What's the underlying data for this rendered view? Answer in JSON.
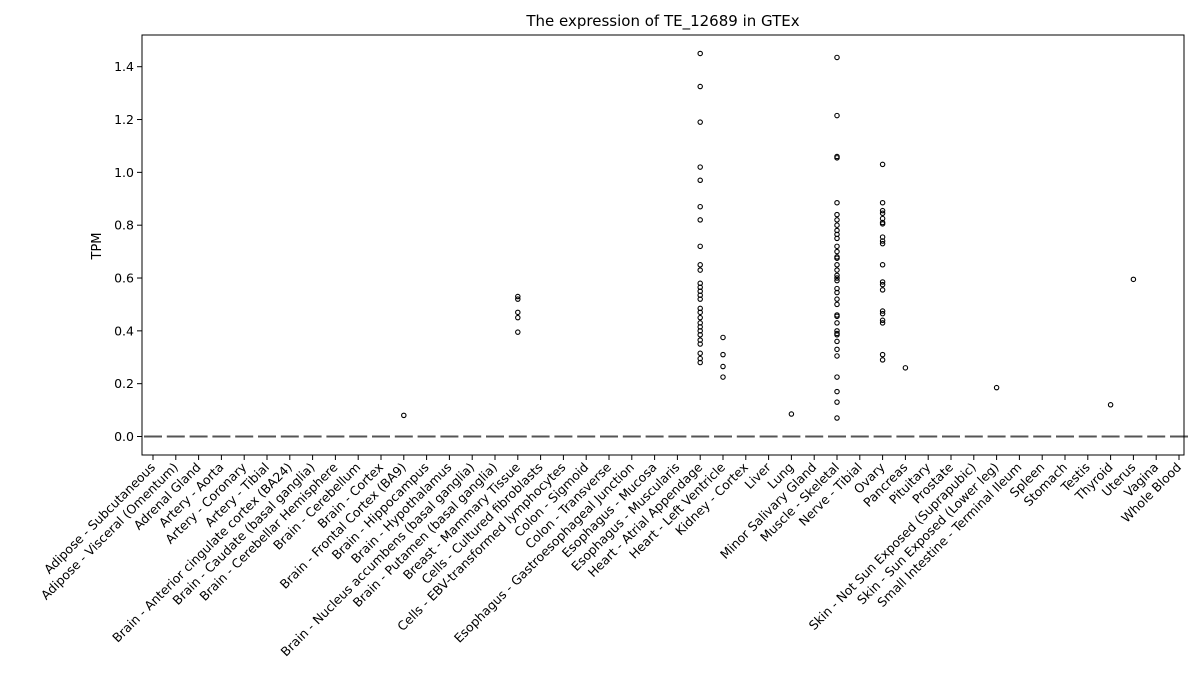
{
  "chart_data": {
    "type": "box",
    "title": "The expression of TE_12689 in GTEx",
    "xlabel": "",
    "ylabel": "TPM",
    "ylim": [
      -0.07,
      1.52
    ],
    "yticks": [
      "0.0",
      "0.2",
      "0.4",
      "0.6",
      "0.8",
      "1.0",
      "1.2",
      "1.4"
    ],
    "ytick_values": [
      0.0,
      0.2,
      0.4,
      0.6,
      0.8,
      1.0,
      1.2,
      1.4
    ],
    "grid": false,
    "median_color": "#555555",
    "categories": [
      "Adipose - Subcutaneous",
      "Adipose - Visceral (Omentum)",
      "Adrenal Gland",
      "Artery - Aorta",
      "Artery - Coronary",
      "Artery - Tibial",
      "Brain - Anterior cingulate cortex (BA24)",
      "Brain - Caudate (basal ganglia)",
      "Brain - Cerebellar Hemisphere",
      "Brain - Cerebellum",
      "Brain - Cortex",
      "Brain - Frontal Cortex (BA9)",
      "Brain - Hippocampus",
      "Brain - Hypothalamus",
      "Brain - Nucleus accumbens (basal ganglia)",
      "Brain - Putamen (basal ganglia)",
      "Breast - Mammary Tissue",
      "Cells - Cultured fibroblasts",
      "Cells - EBV-transformed lymphocytes",
      "Colon - Sigmoid",
      "Colon - Transverse",
      "Esophagus - Gastroesophageal Junction",
      "Esophagus - Mucosa",
      "Esophagus - Muscularis",
      "Heart - Atrial Appendage",
      "Heart - Left Ventricle",
      "Kidney - Cortex",
      "Liver",
      "Lung",
      "Minor Salivary Gland",
      "Muscle - Skeletal",
      "Nerve - Tibial",
      "Ovary",
      "Pancreas",
      "Pituitary",
      "Prostate",
      "Skin - Not Sun Exposed (Suprapubic)",
      "Skin - Sun Exposed (Lower leg)",
      "Small Intestine - Terminal Ileum",
      "Spleen",
      "Stomach",
      "Testis",
      "Thyroid",
      "Uterus",
      "Vagina",
      "Whole Blood"
    ],
    "medians": [
      0,
      0,
      0,
      0,
      0,
      0,
      0,
      0,
      0,
      0,
      0,
      0,
      0,
      0,
      0,
      0,
      0,
      0,
      0,
      0,
      0,
      0,
      0,
      0,
      0,
      0,
      0,
      0,
      0,
      0,
      0,
      0,
      0,
      0,
      0,
      0,
      0,
      0,
      0,
      0,
      0,
      0,
      0,
      0,
      0,
      0
    ],
    "outliers": [
      [],
      [],
      [],
      [],
      [],
      [],
      [],
      [],
      [],
      [],
      [],
      [
        0.08
      ],
      [],
      [],
      [],
      [],
      [
        0.53,
        0.52,
        0.47,
        0.45,
        0.395
      ],
      [],
      [],
      [],
      [],
      [],
      [],
      [],
      [
        1.45,
        1.325,
        1.19,
        1.02,
        0.97,
        0.87,
        0.82,
        0.72,
        0.65,
        0.63,
        0.58,
        0.565,
        0.55,
        0.535,
        0.52,
        0.485,
        0.47,
        0.45,
        0.43,
        0.415,
        0.4,
        0.385,
        0.365,
        0.35,
        0.315,
        0.295,
        0.28
      ],
      [
        0.375,
        0.31,
        0.265,
        0.225
      ],
      [],
      [],
      [
        0.085
      ],
      [],
      [
        1.435,
        1.215,
        1.06,
        1.055,
        0.885,
        0.84,
        0.82,
        0.8,
        0.78,
        0.765,
        0.75,
        0.72,
        0.7,
        0.68,
        0.675,
        0.65,
        0.63,
        0.61,
        0.6,
        0.59,
        0.56,
        0.545,
        0.52,
        0.5,
        0.46,
        0.455,
        0.43,
        0.4,
        0.39,
        0.385,
        0.36,
        0.33,
        0.305,
        0.225,
        0.17,
        0.13,
        0.07
      ],
      [],
      [
        1.03,
        0.885,
        0.855,
        0.845,
        0.825,
        0.81,
        0.805,
        0.755,
        0.74,
        0.73,
        0.65,
        0.585,
        0.575,
        0.555,
        0.475,
        0.465,
        0.44,
        0.43,
        0.31,
        0.29
      ],
      [
        0.26
      ],
      [],
      [],
      [],
      [
        0.185
      ],
      [],
      [],
      [],
      [],
      [
        0.12
      ],
      [
        0.595
      ],
      [],
      []
    ]
  }
}
